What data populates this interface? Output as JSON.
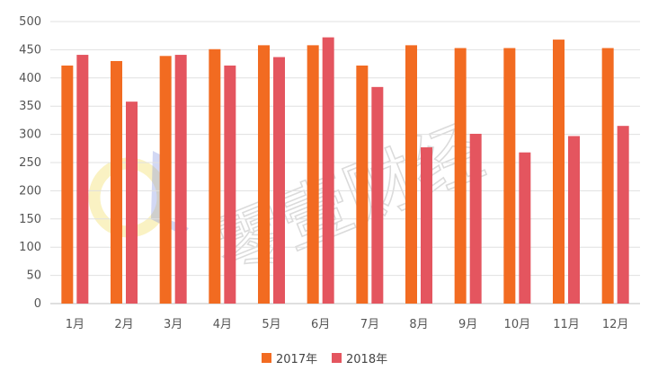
{
  "chart_data": {
    "type": "bar",
    "categories": [
      "1月",
      "2月",
      "3月",
      "4月",
      "5月",
      "6月",
      "7月",
      "8月",
      "9月",
      "10月",
      "11月",
      "12月"
    ],
    "series": [
      {
        "name": "2017年",
        "color": "#f26b21",
        "values": [
          422,
          430,
          439,
          451,
          458,
          458,
          422,
          458,
          453,
          453,
          468,
          453
        ]
      },
      {
        "name": "2018年",
        "color": "#e4555f",
        "values": [
          441,
          358,
          441,
          422,
          437,
          472,
          384,
          277,
          301,
          268,
          297,
          315
        ]
      }
    ],
    "ylim": [
      0,
      500
    ],
    "yticks": [
      0,
      50,
      100,
      150,
      200,
      250,
      300,
      350,
      400,
      450,
      500
    ],
    "grid": true,
    "legend": "bottom-center",
    "title": "",
    "xlabel": "",
    "ylabel": ""
  },
  "watermark": {
    "text": "零壹财经",
    "logo_colors": [
      "#f3e27a",
      "#7f8fe0"
    ]
  }
}
